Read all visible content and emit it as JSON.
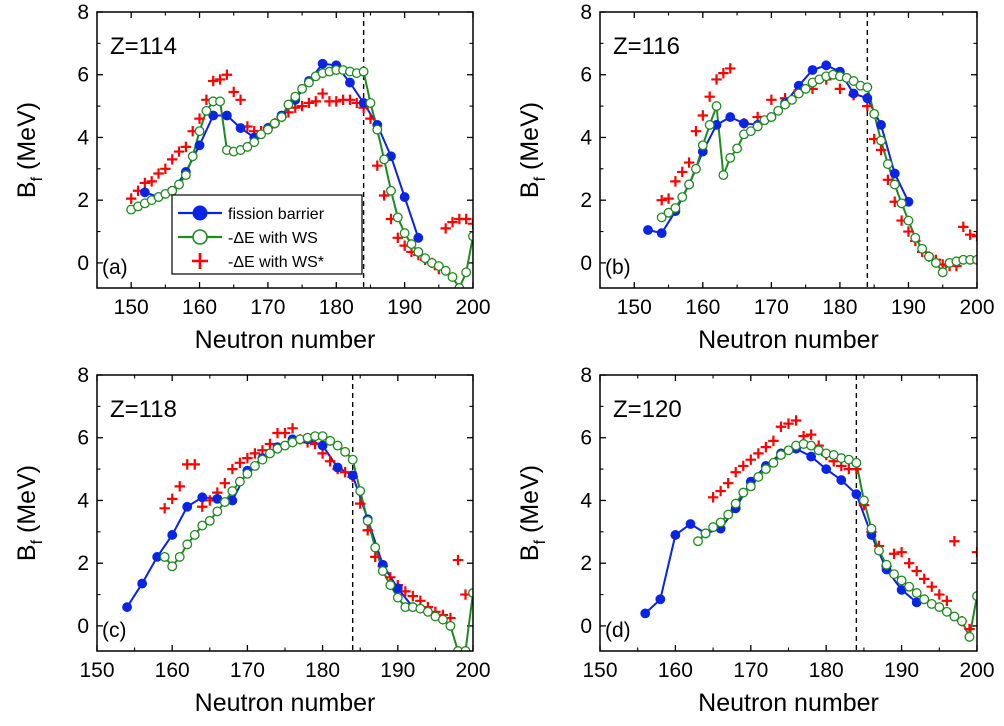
{
  "colors": {
    "barrier": "#0a24e6",
    "ws": "#1f8a1f",
    "wsstar": "#ff0000",
    "axis": "#000000"
  },
  "legend": {
    "placement": "panel-a-lower-left",
    "entries": [
      {
        "key": "barrier",
        "label": "fission barrier"
      },
      {
        "key": "ws",
        "label": "-ΔE with WS"
      },
      {
        "key": "wsstar",
        "label": "-ΔE with WS*"
      }
    ]
  },
  "chart_data": [
    {
      "type": "scatter",
      "panel_label": "(a)",
      "annotation": "Z=114",
      "xlabel": "Neutron number",
      "ylabel_main": "B",
      "ylabel_sub": "f",
      "ylabel_unit": " (MeV)",
      "xlim": [
        145,
        200
      ],
      "ylim": [
        -0.8,
        8
      ],
      "xticks": [
        150,
        160,
        170,
        180,
        190,
        200
      ],
      "yticks": [
        0,
        2,
        4,
        6,
        8
      ],
      "vline_x": 184,
      "series": [
        {
          "key": "barrier",
          "name": "fission barrier",
          "marker": "filled-circle",
          "line": true,
          "x": [
            152,
            154,
            156,
            158,
            160,
            162,
            164,
            166,
            168,
            170,
            172,
            174,
            176,
            178,
            180,
            182,
            184,
            186,
            188,
            190,
            192
          ],
          "y": [
            2.25,
            2.1,
            2.3,
            2.9,
            3.75,
            4.7,
            4.7,
            4.3,
            4.0,
            4.3,
            4.7,
            5.2,
            5.8,
            6.35,
            6.3,
            5.75,
            5.1,
            4.4,
            3.4,
            2.1,
            0.8
          ]
        },
        {
          "key": "ws",
          "name": "-ΔE with WS",
          "marker": "open-circle",
          "line": true,
          "x": [
            150,
            151,
            152,
            153,
            154,
            155,
            156,
            157,
            158,
            159,
            160,
            161,
            162,
            163,
            164,
            165,
            166,
            167,
            168,
            169,
            170,
            171,
            172,
            173,
            174,
            175,
            176,
            177,
            178,
            179,
            180,
            181,
            182,
            183,
            184,
            185,
            186,
            187,
            188,
            189,
            190,
            191,
            192,
            193,
            194,
            195,
            196,
            197,
            198,
            199,
            200
          ],
          "y": [
            1.7,
            1.8,
            1.9,
            2.0,
            2.1,
            2.2,
            2.3,
            2.5,
            2.8,
            3.4,
            4.2,
            4.85,
            5.15,
            5.15,
            3.6,
            3.55,
            3.6,
            3.7,
            3.85,
            4.1,
            4.25,
            4.45,
            4.65,
            5.05,
            5.3,
            5.55,
            5.75,
            5.95,
            6.05,
            6.1,
            6.15,
            6.15,
            6.1,
            6.05,
            6.1,
            5.1,
            4.25,
            3.3,
            2.3,
            1.45,
            0.95,
            0.6,
            0.35,
            0.15,
            0.0,
            -0.1,
            -0.25,
            -0.45,
            -0.8,
            -0.3,
            0.85
          ]
        },
        {
          "key": "wsstar",
          "name": "-ΔE with WS*",
          "marker": "plus",
          "line": false,
          "x": [
            150,
            151,
            152,
            153,
            154,
            155,
            156,
            157,
            158,
            159,
            160,
            161,
            162,
            163,
            164,
            165,
            166,
            167,
            168,
            169,
            170,
            171,
            172,
            173,
            174,
            175,
            176,
            177,
            178,
            179,
            180,
            181,
            182,
            183,
            184,
            185,
            186,
            187,
            188,
            189,
            190,
            191,
            192,
            193,
            194,
            195,
            196,
            197,
            198,
            199,
            200
          ],
          "y": [
            2.05,
            2.3,
            2.55,
            2.6,
            2.85,
            3.0,
            3.3,
            3.55,
            3.7,
            4.2,
            4.6,
            5.2,
            5.8,
            5.85,
            6.0,
            5.45,
            5.2,
            4.35,
            4.2,
            4.2,
            4.3,
            4.45,
            4.65,
            4.8,
            4.95,
            5.0,
            5.1,
            5.15,
            5.4,
            5.15,
            5.15,
            5.2,
            5.2,
            5.1,
            4.95,
            4.6,
            3.1,
            2.15,
            1.4,
            0.8,
            0.55,
            0.35,
            0.25,
            0.1,
            0.0,
            -0.2,
            1.1,
            1.3,
            1.4,
            1.4,
            1.25
          ]
        }
      ]
    },
    {
      "type": "scatter",
      "panel_label": "(b)",
      "annotation": "Z=116",
      "xlabel": "Neutron number",
      "ylabel_main": "B",
      "ylabel_sub": "f",
      "ylabel_unit": " (MeV)",
      "xlim": [
        145,
        200
      ],
      "ylim": [
        -0.8,
        8
      ],
      "xticks": [
        150,
        160,
        170,
        180,
        190,
        200
      ],
      "yticks": [
        0,
        2,
        4,
        6,
        8
      ],
      "vline_x": 184,
      "series": [
        {
          "key": "barrier",
          "name": "fission barrier",
          "marker": "filled-circle",
          "line": true,
          "x": [
            152,
            154,
            156,
            158,
            160,
            162,
            164,
            166,
            168,
            170,
            172,
            174,
            176,
            178,
            180,
            182,
            184,
            186,
            188,
            190
          ],
          "y": [
            1.05,
            0.95,
            1.65,
            2.5,
            3.55,
            4.4,
            4.65,
            4.45,
            4.4,
            4.65,
            5.1,
            5.65,
            6.15,
            6.3,
            6.1,
            5.4,
            5.25,
            4.4,
            2.85,
            1.95
          ]
        },
        {
          "key": "ws",
          "name": "-ΔE with WS",
          "marker": "open-circle",
          "line": true,
          "x": [
            154,
            155,
            156,
            157,
            158,
            159,
            160,
            161,
            162,
            163,
            164,
            165,
            166,
            167,
            168,
            169,
            170,
            171,
            172,
            173,
            174,
            175,
            176,
            177,
            178,
            179,
            180,
            181,
            182,
            183,
            184,
            185,
            186,
            187,
            188,
            189,
            190,
            191,
            192,
            193,
            194,
            195,
            196,
            197,
            198,
            199,
            200
          ],
          "y": [
            1.45,
            1.6,
            1.75,
            2.1,
            2.5,
            3.0,
            3.75,
            4.4,
            5.0,
            2.8,
            3.35,
            3.65,
            4.1,
            4.2,
            4.35,
            4.55,
            4.65,
            4.85,
            5.05,
            5.2,
            5.4,
            5.55,
            5.75,
            5.85,
            5.95,
            6.0,
            5.95,
            5.9,
            5.8,
            5.65,
            5.6,
            4.75,
            3.9,
            3.15,
            2.5,
            1.9,
            1.35,
            0.8,
            0.45,
            0.2,
            0.0,
            -0.3,
            0.0,
            0.05,
            0.1,
            0.1,
            0.1
          ]
        },
        {
          "key": "wsstar",
          "name": "-ΔE with WS*",
          "marker": "plus",
          "line": false,
          "x": [
            154,
            155,
            156,
            157,
            158,
            159,
            160,
            161,
            162,
            163,
            164,
            166,
            168,
            170,
            172,
            174,
            176,
            178,
            180,
            182,
            184,
            185,
            186,
            187,
            188,
            189,
            190,
            191,
            192,
            193,
            194,
            195,
            196,
            197,
            198,
            199,
            200
          ],
          "y": [
            2.0,
            2.05,
            2.6,
            2.9,
            3.2,
            4.2,
            4.7,
            5.3,
            5.85,
            6.05,
            6.2,
            4.45,
            4.65,
            5.2,
            5.25,
            5.5,
            5.55,
            5.85,
            5.55,
            5.35,
            5.0,
            3.95,
            3.6,
            2.65,
            1.95,
            1.35,
            1.0,
            0.7,
            0.35,
            0.2,
            0.1,
            -0.05,
            -0.1,
            -0.1,
            1.15,
            0.9,
            0.85
          ]
        }
      ]
    },
    {
      "type": "scatter",
      "panel_label": "(c)",
      "annotation": "Z=118",
      "xlabel": "Neutron number",
      "ylabel_main": "B",
      "ylabel_sub": "f",
      "ylabel_unit": " (MeV)",
      "xlim": [
        150,
        200
      ],
      "ylim": [
        -0.8,
        8
      ],
      "xticks": [
        150,
        160,
        170,
        180,
        190,
        200
      ],
      "yticks": [
        0,
        2,
        4,
        6,
        8
      ],
      "vline_x": 184,
      "series": [
        {
          "key": "barrier",
          "name": "fission barrier",
          "marker": "filled-circle",
          "line": true,
          "x": [
            154,
            156,
            158,
            160,
            162,
            164,
            166,
            168,
            170,
            172,
            174,
            176,
            178,
            180,
            182,
            184,
            186,
            188,
            190,
            192
          ],
          "y": [
            0.6,
            1.35,
            2.2,
            2.9,
            3.8,
            4.1,
            4.05,
            4.0,
            4.95,
            5.35,
            5.7,
            5.95,
            5.95,
            5.75,
            5.05,
            4.8,
            3.4,
            1.95,
            1.2,
            0.6
          ]
        },
        {
          "key": "ws",
          "name": "-ΔE with WS",
          "marker": "open-circle",
          "line": true,
          "x": [
            159,
            160,
            161,
            162,
            163,
            164,
            165,
            166,
            167,
            168,
            169,
            170,
            171,
            172,
            173,
            174,
            175,
            176,
            177,
            178,
            179,
            180,
            181,
            182,
            183,
            184,
            185,
            186,
            187,
            188,
            189,
            190,
            191,
            192,
            193,
            194,
            195,
            196,
            197,
            198,
            199,
            200
          ],
          "y": [
            2.2,
            1.9,
            2.2,
            2.6,
            2.9,
            3.2,
            3.35,
            3.65,
            3.95,
            4.3,
            4.6,
            4.85,
            5.1,
            5.3,
            5.5,
            5.65,
            5.75,
            5.85,
            5.95,
            6.0,
            6.05,
            6.05,
            5.9,
            5.75,
            5.55,
            5.3,
            4.3,
            3.35,
            2.5,
            1.75,
            1.3,
            0.9,
            0.6,
            0.6,
            0.55,
            0.45,
            0.3,
            0.2,
            0.0,
            -0.8,
            -0.8,
            1.05
          ]
        },
        {
          "key": "wsstar",
          "name": "-ΔE with WS*",
          "marker": "plus",
          "line": false,
          "x": [
            159,
            160,
            161,
            162,
            163,
            164,
            165,
            166,
            167,
            168,
            169,
            170,
            171,
            172,
            173,
            174,
            175,
            176,
            177,
            178,
            179,
            180,
            181,
            182,
            183,
            184,
            185,
            186,
            187,
            188,
            189,
            190,
            191,
            192,
            193,
            194,
            195,
            196,
            197,
            198,
            199
          ],
          "y": [
            3.75,
            4.05,
            4.45,
            5.15,
            5.15,
            3.8,
            4.0,
            4.25,
            4.55,
            5.0,
            5.2,
            5.35,
            5.5,
            5.6,
            5.8,
            6.15,
            6.15,
            6.3,
            5.95,
            5.85,
            5.8,
            5.5,
            5.25,
            5.0,
            4.9,
            4.75,
            3.9,
            3.05,
            2.2,
            1.9,
            1.55,
            1.3,
            1.1,
            0.95,
            0.8,
            0.6,
            0.45,
            0.35,
            0.25,
            2.1,
            1.0
          ]
        }
      ]
    },
    {
      "type": "scatter",
      "panel_label": "(d)",
      "annotation": "Z=120",
      "xlabel": "Neutron number",
      "ylabel_main": "B",
      "ylabel_sub": "f",
      "ylabel_unit": " (MeV)",
      "xlim": [
        150,
        200
      ],
      "ylim": [
        -0.8,
        8
      ],
      "xticks": [
        150,
        160,
        170,
        180,
        190,
        200
      ],
      "yticks": [
        0,
        2,
        4,
        6,
        8
      ],
      "vline_x": 184,
      "series": [
        {
          "key": "barrier",
          "name": "fission barrier",
          "marker": "filled-circle",
          "line": true,
          "x": [
            156,
            158,
            160,
            162,
            164,
            166,
            168,
            170,
            172,
            174,
            176,
            178,
            180,
            182,
            184,
            186,
            188,
            190,
            192
          ],
          "y": [
            0.4,
            0.85,
            2.9,
            3.25,
            2.95,
            3.1,
            3.75,
            4.6,
            5.1,
            5.5,
            5.65,
            5.4,
            5.0,
            4.65,
            4.2,
            2.9,
            1.8,
            1.15,
            0.75
          ]
        },
        {
          "key": "ws",
          "name": "-ΔE with WS",
          "marker": "open-circle",
          "line": true,
          "x": [
            163,
            164,
            165,
            166,
            167,
            168,
            169,
            170,
            171,
            172,
            173,
            174,
            175,
            176,
            177,
            178,
            179,
            180,
            181,
            182,
            183,
            184,
            185,
            186,
            187,
            188,
            189,
            190,
            191,
            192,
            193,
            194,
            195,
            196,
            197,
            198,
            199,
            200
          ],
          "y": [
            2.7,
            2.95,
            3.15,
            3.3,
            3.55,
            3.9,
            4.25,
            4.45,
            4.75,
            5.0,
            5.2,
            5.45,
            5.6,
            5.75,
            5.8,
            5.75,
            5.6,
            5.5,
            5.45,
            5.35,
            5.3,
            5.2,
            4.0,
            3.1,
            2.4,
            1.95,
            1.65,
            1.45,
            1.25,
            1.05,
            0.85,
            0.7,
            0.6,
            0.45,
            0.3,
            0.15,
            -0.35,
            0.95
          ]
        },
        {
          "key": "wsstar",
          "name": "-ΔE with WS*",
          "marker": "plus",
          "line": false,
          "x": [
            165,
            166,
            167,
            168,
            169,
            170,
            171,
            172,
            173,
            174,
            175,
            176,
            177,
            178,
            179,
            180,
            181,
            182,
            183,
            184,
            185,
            186,
            187,
            188,
            189,
            190,
            191,
            192,
            193,
            194,
            195,
            196,
            197,
            198,
            199,
            200
          ],
          "y": [
            4.1,
            4.3,
            4.55,
            4.9,
            5.1,
            5.3,
            5.5,
            5.7,
            5.9,
            6.35,
            6.45,
            6.55,
            6.05,
            6.1,
            5.75,
            5.45,
            5.25,
            5.1,
            5.0,
            5.0,
            3.85,
            3.0,
            2.55,
            1.9,
            2.3,
            2.35,
            2.0,
            1.75,
            1.5,
            1.25,
            1.0,
            0.8,
            2.7,
            0.15,
            -0.1,
            2.35
          ]
        }
      ]
    }
  ]
}
